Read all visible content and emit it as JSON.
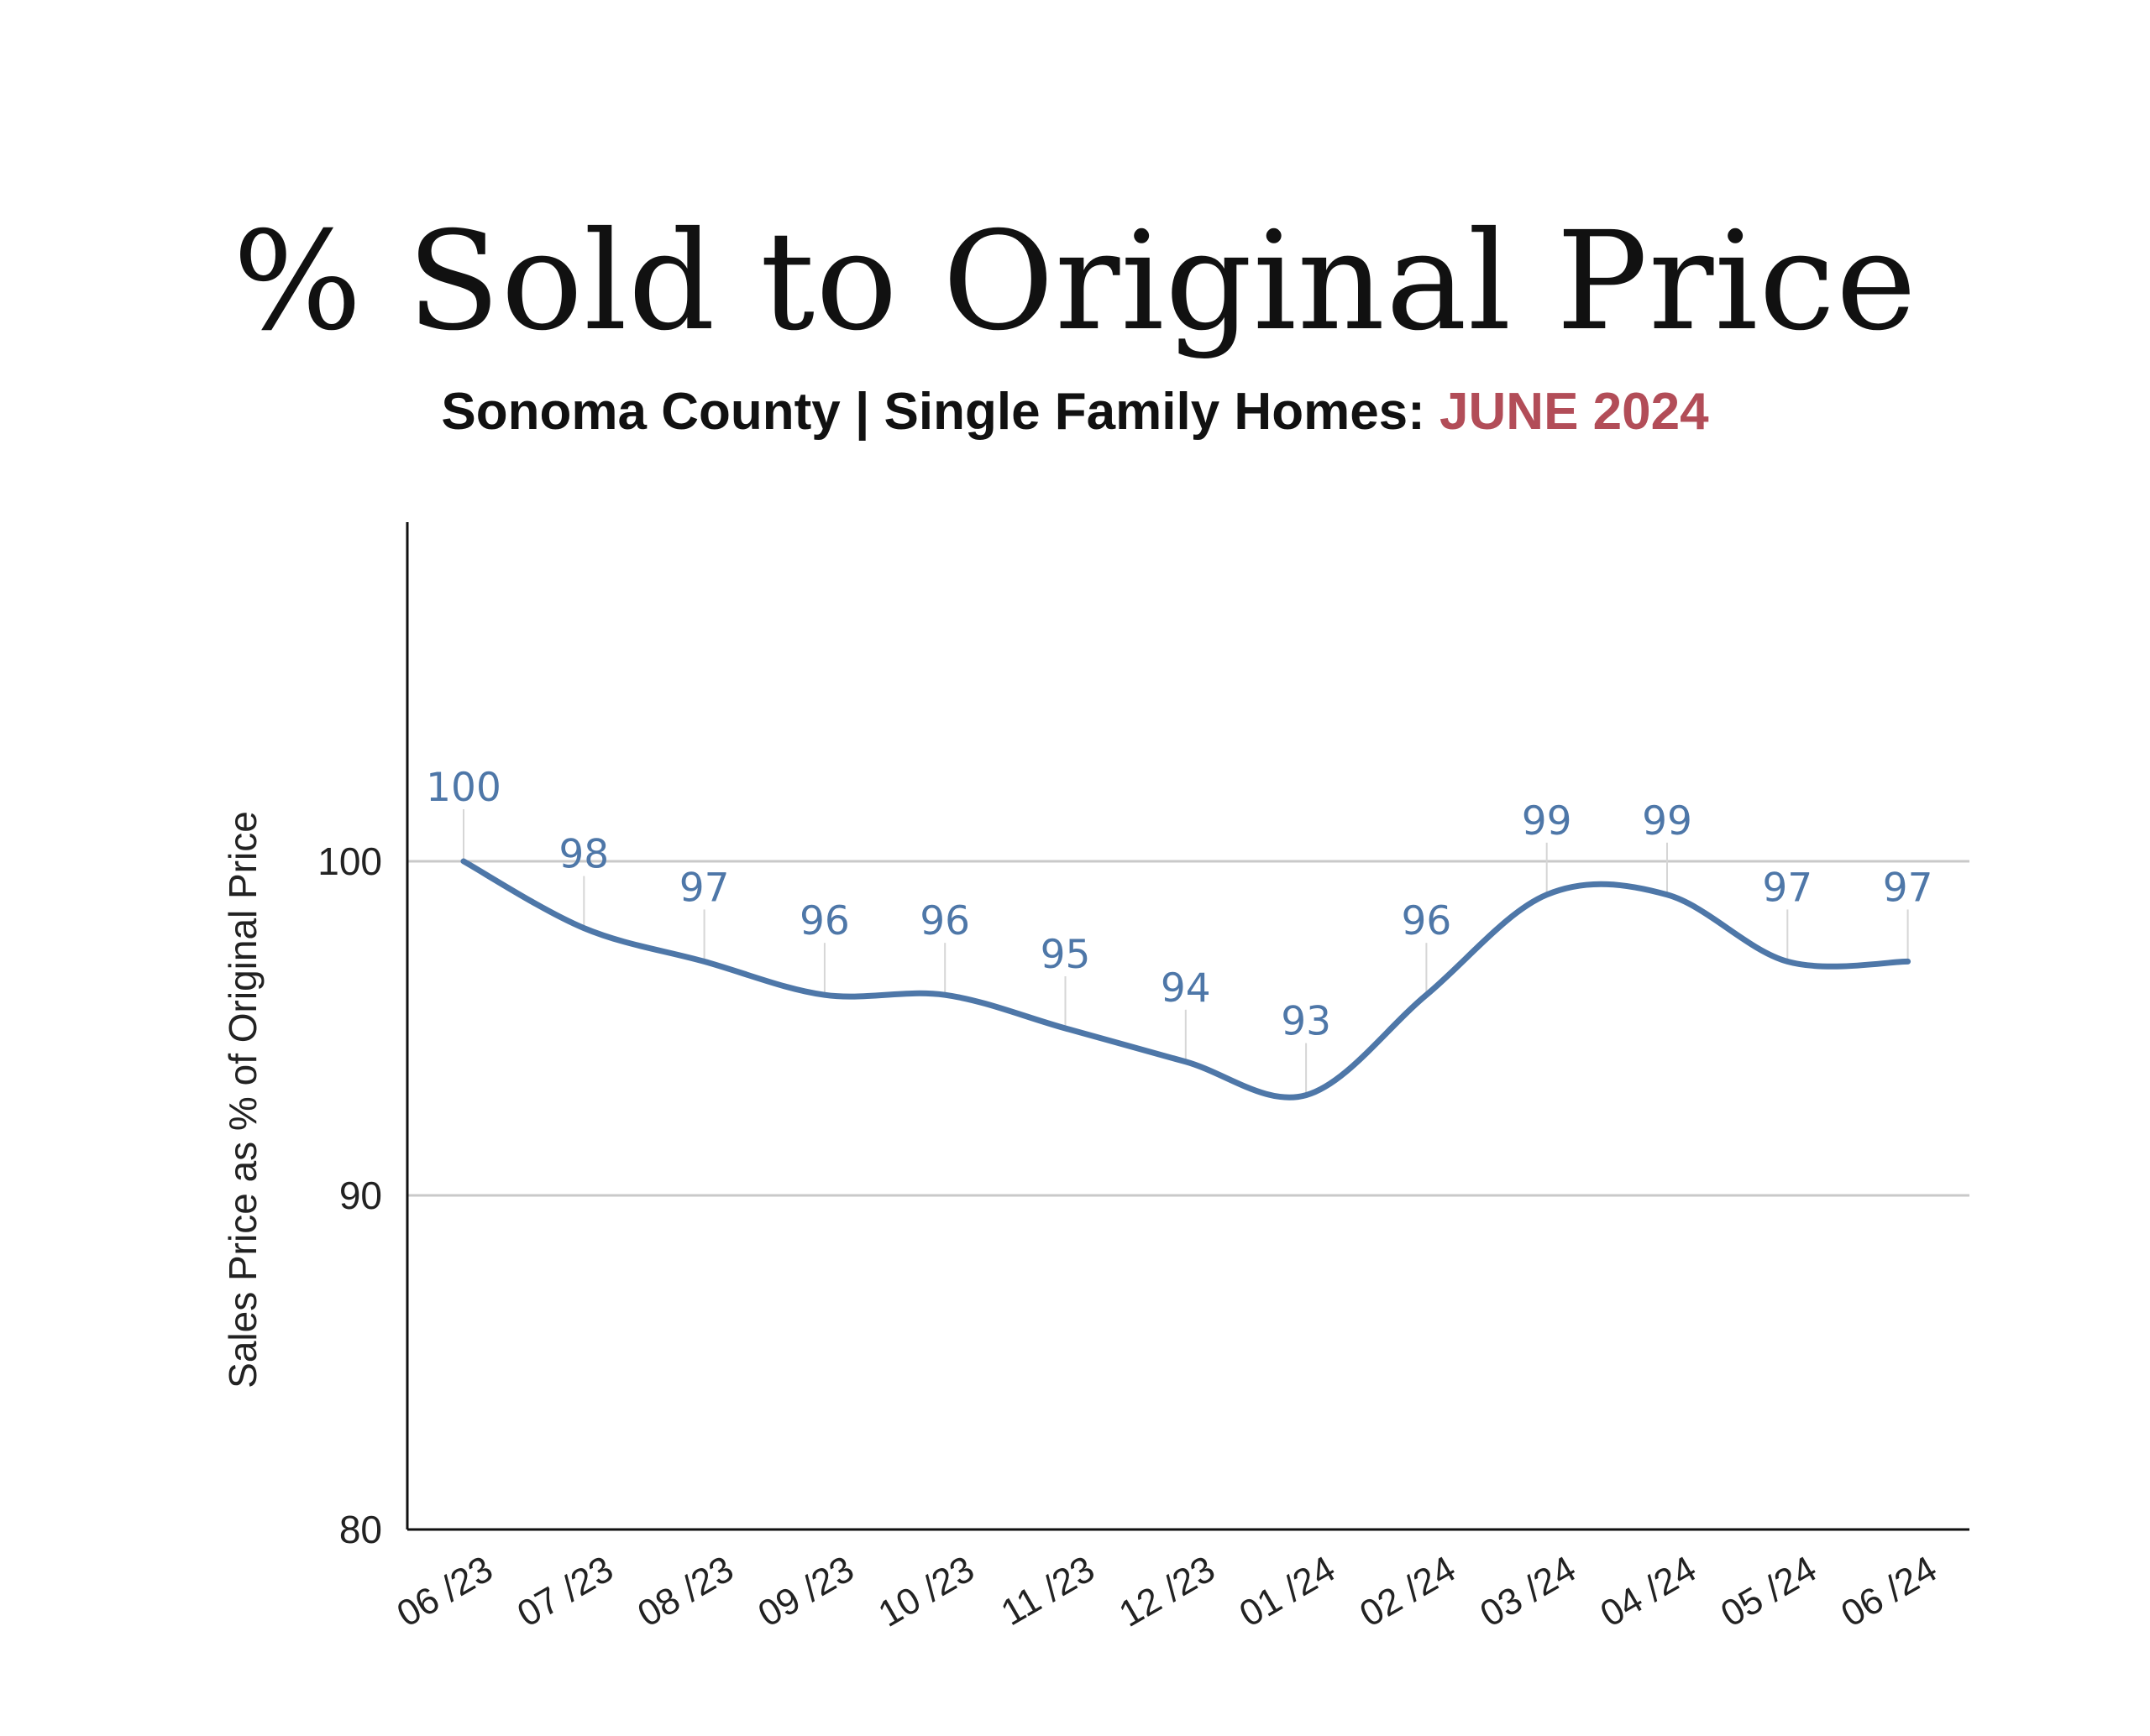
{
  "header": {
    "title": "% Sold to Original Price",
    "subtitle_main": "Sonoma County | Single Family Homes:",
    "subtitle_accent": "JUNE 2024"
  },
  "colors": {
    "series": "#4e77a8",
    "accent": "#b24d58",
    "grid": "#c9c9c9",
    "axis": "#111111"
  },
  "chart_data": {
    "type": "line",
    "categories": [
      "06 /23",
      "07 /23",
      "08 /23",
      "09 /23",
      "10 /23",
      "11 /23",
      "12 /23",
      "01 /24",
      "02 /24",
      "03 /24",
      "04 /24",
      "05 /24",
      "06 /24"
    ],
    "series": [
      {
        "values": [
          100,
          98,
          97,
          96,
          96,
          95,
          94,
          93,
          96,
          99,
          99,
          97,
          97
        ]
      }
    ],
    "data_labels": [
      "100",
      "98",
      "97",
      "96",
      "96",
      "95",
      "94",
      "93",
      "96",
      "99",
      "99",
      "97",
      "97"
    ],
    "ylabel": "Sales Price as % of Original Price",
    "xlabel": "",
    "ylim": [
      80,
      110
    ],
    "yticks": [
      80,
      90,
      100
    ],
    "grid": "horizontal",
    "smooth": true,
    "legend": "none"
  }
}
